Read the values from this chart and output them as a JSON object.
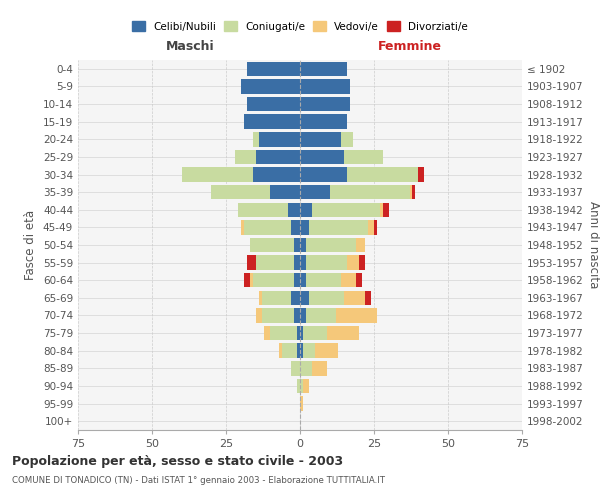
{
  "age_groups": [
    "0-4",
    "5-9",
    "10-14",
    "15-19",
    "20-24",
    "25-29",
    "30-34",
    "35-39",
    "40-44",
    "45-49",
    "50-54",
    "55-59",
    "60-64",
    "65-69",
    "70-74",
    "75-79",
    "80-84",
    "85-89",
    "90-94",
    "95-99",
    "100+"
  ],
  "birth_years": [
    "1998-2002",
    "1993-1997",
    "1988-1992",
    "1983-1987",
    "1978-1982",
    "1973-1977",
    "1968-1972",
    "1963-1967",
    "1958-1962",
    "1953-1957",
    "1948-1952",
    "1943-1947",
    "1938-1942",
    "1933-1937",
    "1928-1932",
    "1923-1927",
    "1918-1922",
    "1913-1917",
    "1908-1912",
    "1903-1907",
    "≤ 1902"
  ],
  "males": {
    "celibi": [
      18,
      20,
      18,
      19,
      14,
      15,
      16,
      10,
      4,
      3,
      2,
      2,
      2,
      3,
      2,
      1,
      1,
      0,
      0,
      0,
      0
    ],
    "coniugati": [
      0,
      0,
      0,
      0,
      2,
      7,
      24,
      20,
      17,
      16,
      15,
      13,
      14,
      10,
      11,
      9,
      5,
      3,
      1,
      0,
      0
    ],
    "vedovi": [
      0,
      0,
      0,
      0,
      0,
      0,
      0,
      0,
      0,
      1,
      0,
      0,
      1,
      1,
      2,
      2,
      1,
      0,
      0,
      0,
      0
    ],
    "divorziati": [
      0,
      0,
      0,
      0,
      0,
      0,
      0,
      0,
      0,
      0,
      0,
      3,
      2,
      0,
      0,
      0,
      0,
      0,
      0,
      0,
      0
    ]
  },
  "females": {
    "nubili": [
      16,
      17,
      17,
      16,
      14,
      15,
      16,
      10,
      4,
      3,
      2,
      2,
      2,
      3,
      2,
      1,
      1,
      0,
      0,
      0,
      0
    ],
    "coniugate": [
      0,
      0,
      0,
      0,
      4,
      13,
      24,
      27,
      23,
      20,
      17,
      14,
      12,
      12,
      10,
      8,
      4,
      4,
      1,
      0,
      0
    ],
    "vedove": [
      0,
      0,
      0,
      0,
      0,
      0,
      0,
      1,
      1,
      2,
      3,
      4,
      5,
      7,
      14,
      11,
      8,
      5,
      2,
      1,
      0
    ],
    "divorziate": [
      0,
      0,
      0,
      0,
      0,
      0,
      2,
      1,
      2,
      1,
      0,
      2,
      2,
      2,
      0,
      0,
      0,
      0,
      0,
      0,
      0
    ]
  },
  "colors": {
    "celibi_nubili": "#3a6ea5",
    "coniugati": "#c8dba0",
    "vedovi": "#f5c87a",
    "divorziati": "#cc2222"
  },
  "title": "Popolazione per età, sesso e stato civile - 2003",
  "subtitle": "COMUNE DI TONADICO (TN) - Dati ISTAT 1° gennaio 2003 - Elaborazione TUTTITALIA.IT",
  "xlabel_left": "Maschi",
  "xlabel_right": "Femmine",
  "ylabel_left": "Fasce di età",
  "ylabel_right": "Anni di nascita",
  "xlim": 75,
  "legend_labels": [
    "Celibi/Nubili",
    "Coniugati/e",
    "Vedovi/e",
    "Divorziati/e"
  ],
  "background_color": "#f5f5f5",
  "grid_color": "#cccccc"
}
